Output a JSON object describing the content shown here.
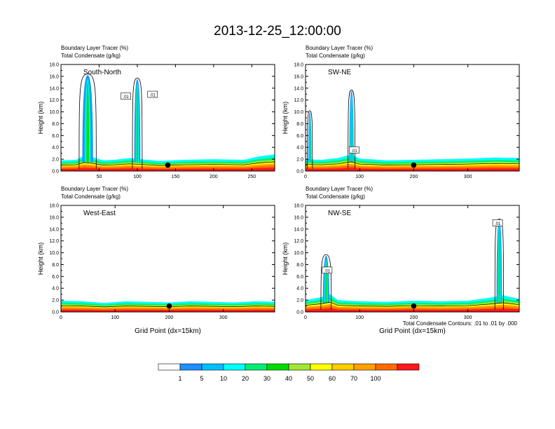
{
  "figure_title": "2013-12-25_12:00:00",
  "bottom_note": "Total Condensate Contours: .01 to .01 by .000",
  "colorbar": {
    "labels": [
      "1",
      "5",
      "10",
      "20",
      "30",
      "40",
      "50",
      "60",
      "70",
      "100"
    ],
    "colors": [
      "#ffffff",
      "#1e90ff",
      "#00bfff",
      "#00ffff",
      "#00ee76",
      "#00dd00",
      "#a0e632",
      "#ffff00",
      "#ffcc00",
      "#ffa000",
      "#ff6a00",
      "#ff1a1a"
    ]
  },
  "chart_data": [
    {
      "type": "cross-section",
      "panel": "South-North",
      "title_lines": [
        "Boundary Layer Tracer   (%)",
        "Total Condensate   (g/kg)"
      ],
      "ylabel": "Height (km)",
      "xlabel": "",
      "ylim": [
        0,
        18
      ],
      "xlim": [
        0,
        280
      ],
      "yticks": [
        "0.0",
        "2.0",
        "4.0",
        "6.0",
        "8.0",
        "10.0",
        "12.0",
        "14.0",
        "16.0",
        "18.0"
      ],
      "xticks": [
        50,
        100,
        150,
        200,
        250
      ],
      "marker_x": 140,
      "contour_labels": [
        {
          "text": ".01",
          "x": 85,
          "z": 12.6
        },
        {
          "text": ".01",
          "x": 120,
          "z": 12.9
        }
      ],
      "surface": [
        [
          0,
          1.8
        ],
        [
          20,
          1.9
        ],
        [
          30,
          2.6
        ],
        [
          40,
          2.4
        ],
        [
          55,
          1.8
        ],
        [
          70,
          1.9
        ],
        [
          90,
          2.2
        ],
        [
          105,
          2.0
        ],
        [
          130,
          1.7
        ],
        [
          160,
          1.9
        ],
        [
          200,
          2.0
        ],
        [
          240,
          1.9
        ],
        [
          260,
          2.5
        ],
        [
          280,
          2.8
        ]
      ],
      "plumes": [
        {
          "x": 35,
          "top": 16.2,
          "width": 14
        },
        {
          "x": 100,
          "top": 15.5,
          "width": 8
        }
      ]
    },
    {
      "type": "cross-section",
      "panel": "SW-NE",
      "title_lines": [
        "Boundary Layer Tracer   (%)",
        "Total Condensate   (g/kg)"
      ],
      "ylabel": "Height (km)",
      "xlabel": "",
      "ylim": [
        0,
        18
      ],
      "xlim": [
        0,
        395
      ],
      "yticks": [
        "0.0",
        "2.0",
        "4.0",
        "6.0",
        "8.0",
        "10.0",
        "12.0",
        "14.0",
        "16.0",
        "18.0"
      ],
      "xticks": [
        0,
        100,
        200,
        300
      ],
      "marker_x": 200,
      "contour_labels": [
        {
          "text": ".01",
          "x": 90,
          "z": 3.5
        }
      ],
      "surface": [
        [
          0,
          2.0
        ],
        [
          30,
          1.9
        ],
        [
          60,
          2.2
        ],
        [
          85,
          2.8
        ],
        [
          100,
          2.1
        ],
        [
          150,
          1.8
        ],
        [
          200,
          1.9
        ],
        [
          250,
          2.0
        ],
        [
          300,
          2.1
        ],
        [
          350,
          2.3
        ],
        [
          395,
          2.2
        ]
      ],
      "plumes": [
        {
          "x": 85,
          "top": 13.5,
          "width": 8
        },
        {
          "x": 8,
          "top": 10.0,
          "width": 6
        }
      ]
    },
    {
      "type": "cross-section",
      "panel": "West-East",
      "title_lines": [
        "Boundary Layer Tracer   (%)",
        "Total Condensate   (g/kg)"
      ],
      "ylabel": "Height (km)",
      "xlabel": "Grid Point (dx=15km)",
      "ylim": [
        0,
        18
      ],
      "xlim": [
        0,
        395
      ],
      "yticks": [
        "0.0",
        "2.0",
        "4.0",
        "6.0",
        "8.0",
        "10.0",
        "12.0",
        "14.0",
        "16.0",
        "18.0"
      ],
      "xticks": [
        0,
        100,
        200,
        300
      ],
      "marker_x": 200,
      "contour_labels": [],
      "surface": [
        [
          0,
          1.9
        ],
        [
          40,
          1.8
        ],
        [
          80,
          1.5
        ],
        [
          120,
          1.8
        ],
        [
          160,
          1.7
        ],
        [
          200,
          1.6
        ],
        [
          240,
          1.8
        ],
        [
          280,
          1.7
        ],
        [
          320,
          1.6
        ],
        [
          360,
          1.8
        ],
        [
          395,
          1.7
        ]
      ],
      "plumes": []
    },
    {
      "type": "cross-section",
      "panel": "NW-SE",
      "title_lines": [
        "Boundary Layer Tracer   (%)",
        "Total Condensate   (g/kg)"
      ],
      "ylabel": "Height (km)",
      "xlabel": "Grid Point (dx=15km)",
      "ylim": [
        0,
        18
      ],
      "xlim": [
        0,
        395
      ],
      "yticks": [
        "0.0",
        "2.0",
        "4.0",
        "6.0",
        "8.0",
        "10.0",
        "12.0",
        "14.0",
        "16.0",
        "18.0"
      ],
      "xticks": [
        0,
        100,
        200,
        300
      ],
      "marker_x": 200,
      "contour_labels": [
        {
          "text": ".01",
          "x": 40,
          "z": 7.0
        },
        {
          "text": ".01",
          "x": 355,
          "z": 15.0
        }
      ],
      "surface": [
        [
          0,
          2.0
        ],
        [
          30,
          2.5
        ],
        [
          45,
          3.0
        ],
        [
          60,
          2.0
        ],
        [
          100,
          1.8
        ],
        [
          150,
          1.7
        ],
        [
          200,
          1.9
        ],
        [
          250,
          1.8
        ],
        [
          300,
          1.9
        ],
        [
          340,
          2.4
        ],
        [
          365,
          2.8
        ],
        [
          395,
          2.2
        ]
      ],
      "plumes": [
        {
          "x": 38,
          "top": 9.5,
          "width": 12
        },
        {
          "x": 358,
          "top": 15.5,
          "width": 10
        }
      ]
    }
  ]
}
